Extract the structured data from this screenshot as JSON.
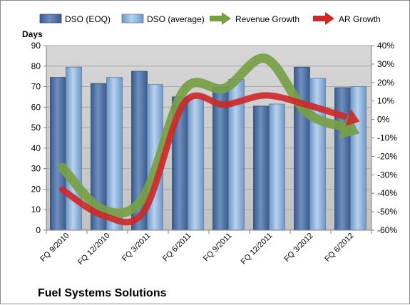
{
  "chart_data": {
    "type": "bar",
    "title": "Fuel Systems Solutions",
    "ylabel": "Days",
    "categories": [
      "FQ 9/2010",
      "FQ 12/2010",
      "FQ 3/2011",
      "FQ 6/2011",
      "FQ 9/2011",
      "FQ 12/2011",
      "FQ 3/2012",
      "FQ 6/2012"
    ],
    "ylim": [
      0,
      90
    ],
    "y_ticks": [
      0,
      10,
      20,
      30,
      40,
      50,
      60,
      70,
      80,
      90
    ],
    "y2lim": [
      -60,
      40
    ],
    "y2_ticks": [
      "-60%",
      "-50%",
      "-40%",
      "-30%",
      "-20%",
      "-10%",
      "0%",
      "10%",
      "20%",
      "30%",
      "40%"
    ],
    "y2_tick_values": [
      -60,
      -50,
      -40,
      -30,
      -20,
      -10,
      0,
      10,
      20,
      30,
      40
    ],
    "grid": true,
    "legend_position": "top",
    "series": [
      {
        "name": "DSO (EOQ)",
        "kind": "bar",
        "axis": "left",
        "color": "#4f6fa0",
        "values": [
          74.5,
          71.5,
          77.5,
          65,
          70,
          60.5,
          79.5,
          69.5
        ]
      },
      {
        "name": "DSO (average)",
        "kind": "bar",
        "axis": "left",
        "color": "#8fb3dd",
        "values": [
          79.5,
          74.5,
          71,
          64.5,
          73.5,
          61.5,
          74,
          70
        ]
      },
      {
        "name": "Revenue Growth",
        "kind": "arrow",
        "axis": "right",
        "color": "#77a045",
        "values": [
          -26,
          -49,
          -42,
          16,
          17,
          33,
          4,
          -5
        ]
      },
      {
        "name": "AR Growth",
        "kind": "arrow",
        "axis": "right",
        "color": "#cc2a2a",
        "values": [
          -38,
          -52,
          -50,
          9,
          8,
          13,
          8,
          1
        ]
      }
    ]
  }
}
